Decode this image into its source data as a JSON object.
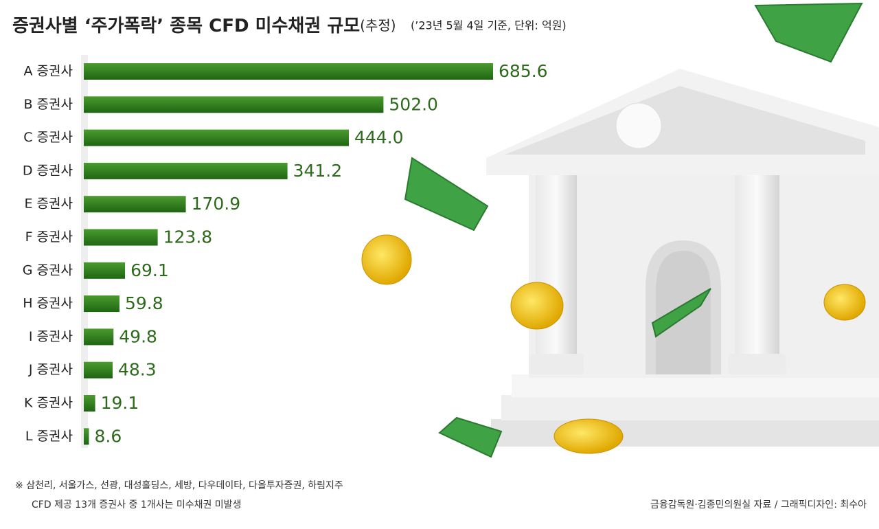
{
  "chart_data": {
    "type": "hbar",
    "title": "증권사별 ‘주가폭락’ 종목 CFD 미수채권 규모",
    "title_note": "(추정)",
    "subtitle": "(’23년 5월 4일 기준, 단위: 억원)",
    "categories": [
      "A 증권사",
      "B 증권사",
      "C 증권사",
      "D 증권사",
      "E 증권사",
      "F 증권사",
      "G 증권사",
      "H 증권사",
      "I 증권사",
      "J 증권사",
      "K 증권사",
      "L 증권사"
    ],
    "values": [
      685.6,
      502.0,
      444.0,
      341.2,
      170.9,
      123.8,
      69.1,
      59.8,
      49.8,
      48.3,
      19.1,
      8.6
    ],
    "value_labels": [
      "685.6",
      "502.0",
      "444.0",
      "341.2",
      "170.9",
      "123.8",
      "69.1",
      "59.8",
      "49.8",
      "48.3",
      "19.1",
      "8.6"
    ],
    "color": "#2e7d1e",
    "footnotes": [
      "※ 삼천리, 서울가스, 선광, 대성홀딩스, 세방, 다우데이타, 다올투자증권, 하림지주",
      "CFD 제공 13개 증권사 중 1개사는 미수채권 미발생"
    ],
    "source": "금융감독원·김종민의원실 자료 / 그래픽디자인: 최수아"
  }
}
